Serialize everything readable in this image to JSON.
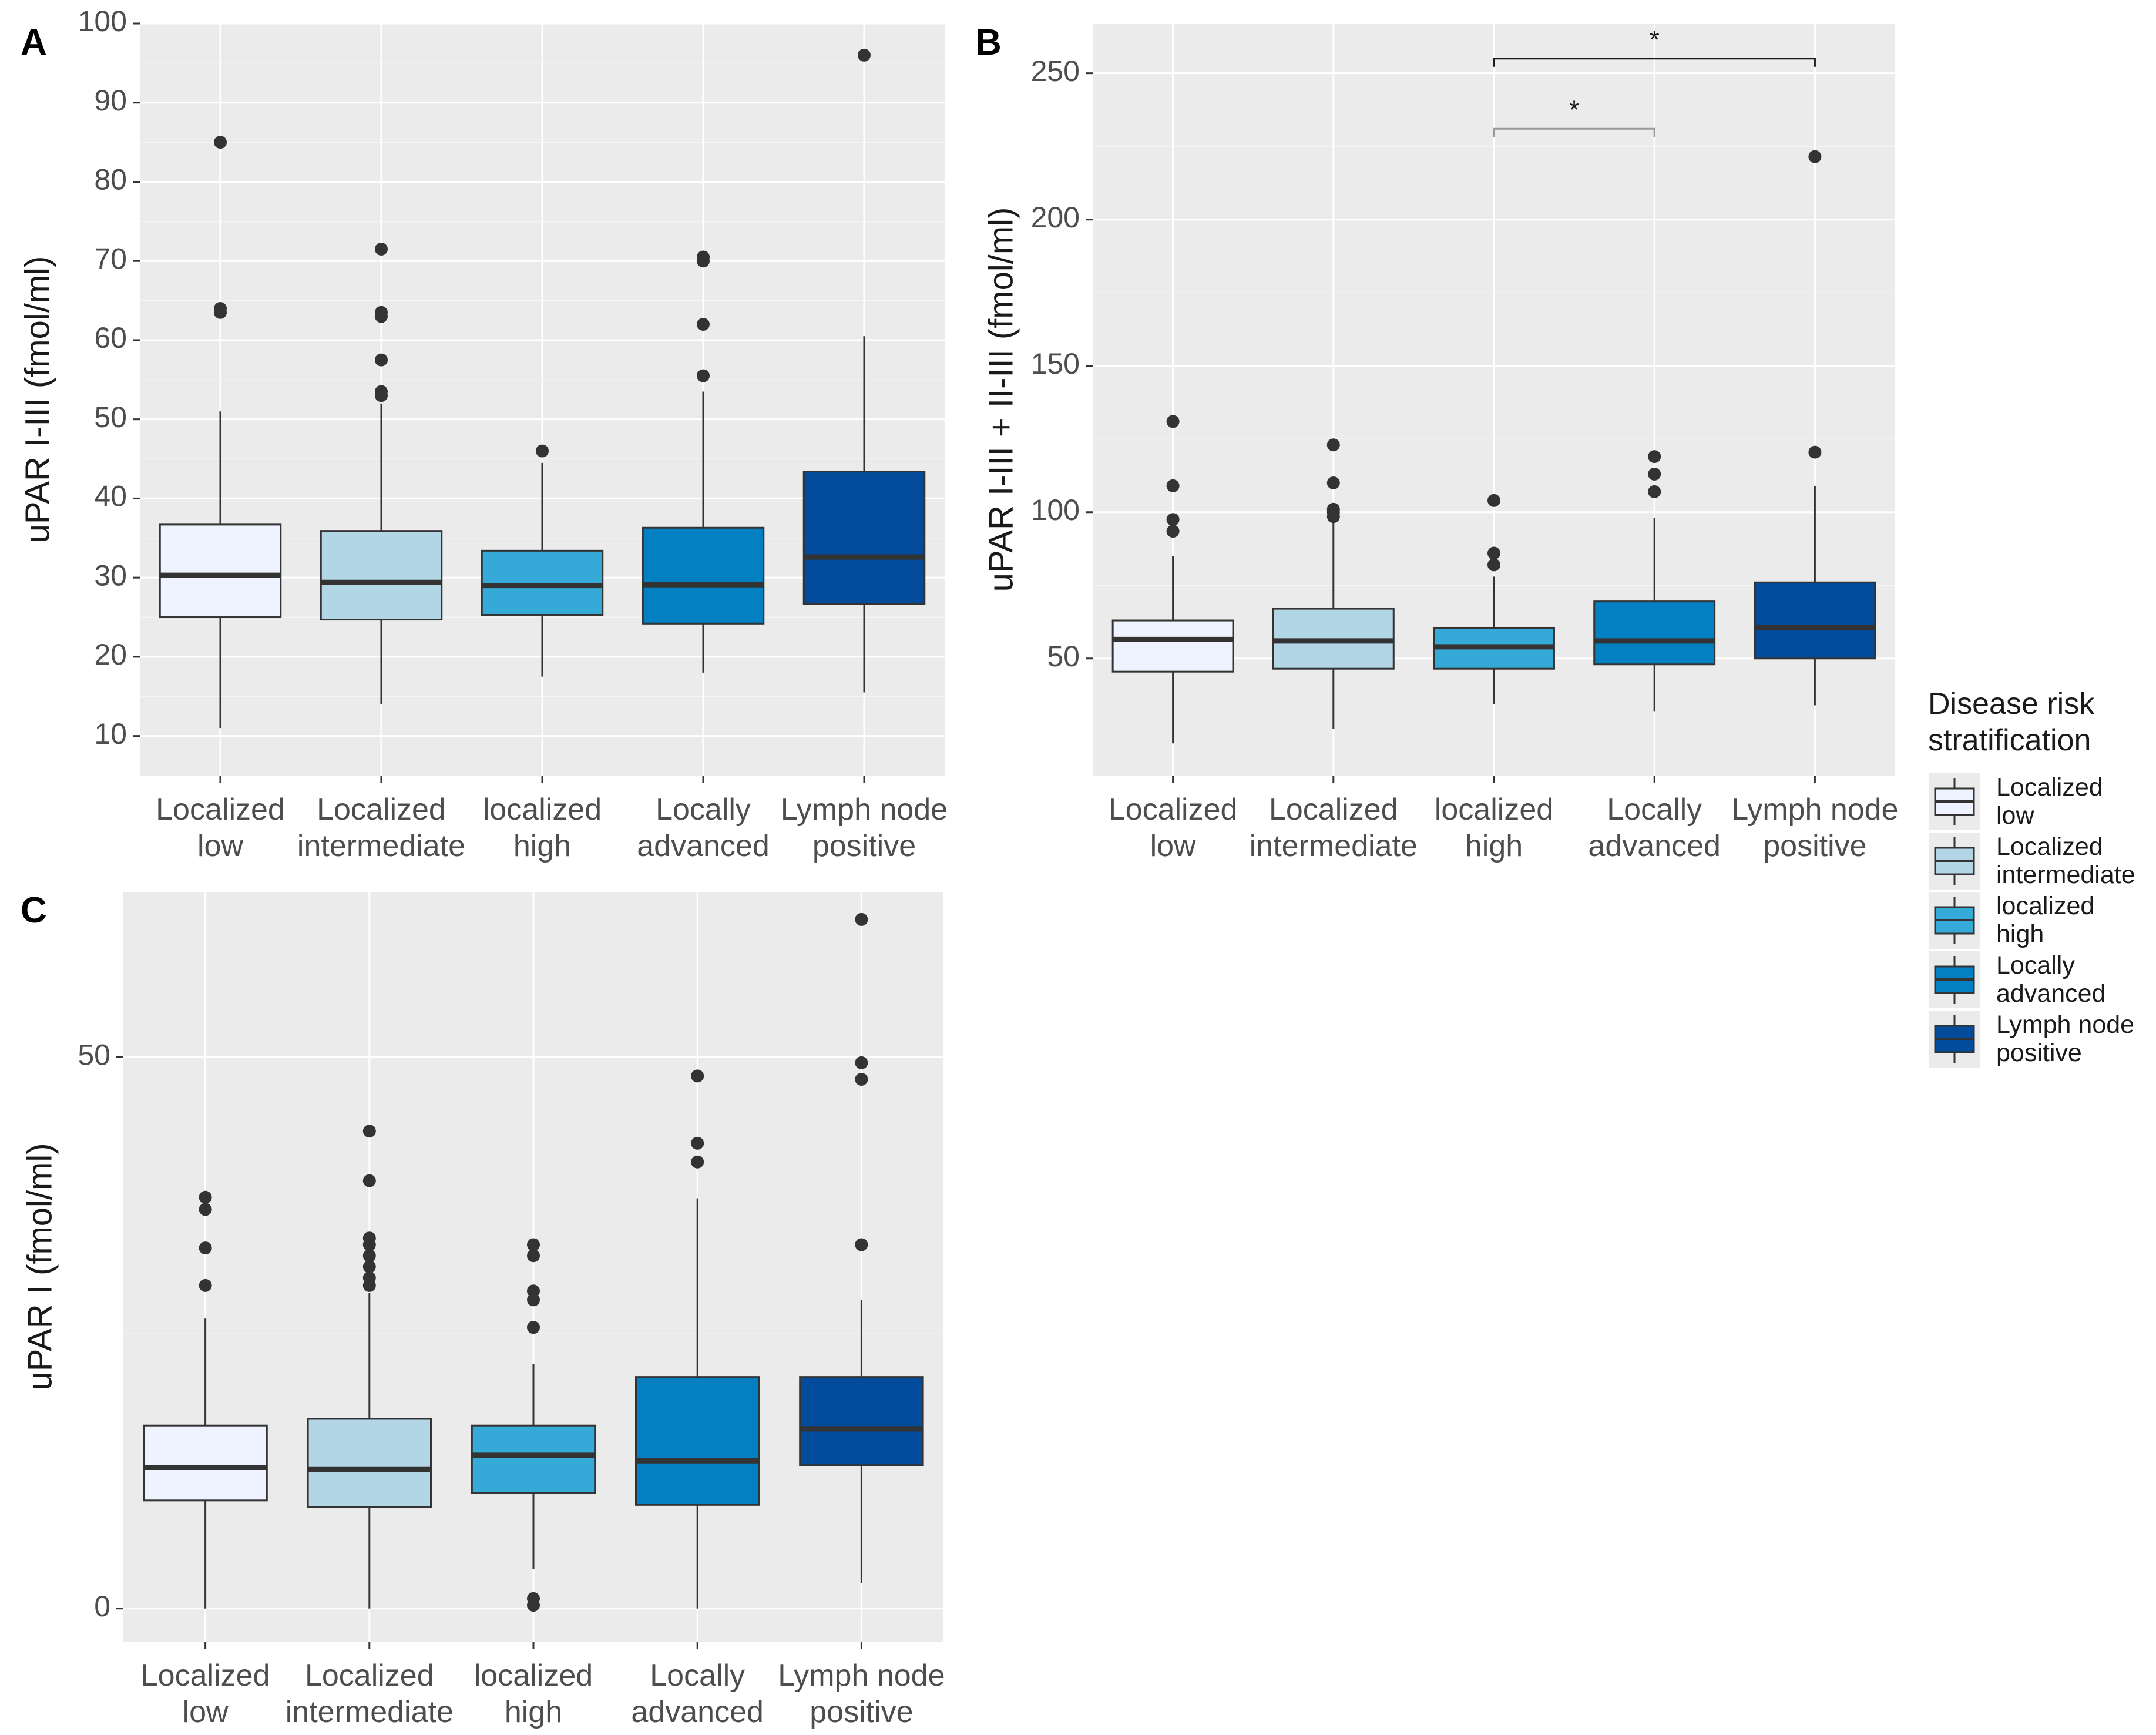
{
  "colors": {
    "panel_bg": "#ebebeb",
    "grid": "#ffffff",
    "box_stroke": "#333333",
    "median": "#333333",
    "point": "#333333",
    "bracket": "#1a1a1a",
    "bracket_short": "#999999"
  },
  "categories": [
    "Localized low",
    "Localized intermediate",
    "localized high",
    "Locally advanced",
    "Lymph node positive"
  ],
  "category_colors": [
    "#eff3ff",
    "#b3d6e6",
    "#35aad8",
    "#0280c2",
    "#034c9c"
  ],
  "legend": {
    "title_lines": [
      "Disease risk",
      "stratification"
    ],
    "items": [
      {
        "lines": [
          "Localized",
          "low"
        ]
      },
      {
        "lines": [
          "Localized",
          "intermediate"
        ]
      },
      {
        "lines": [
          "localized",
          "high"
        ]
      },
      {
        "lines": [
          "Locally",
          "advanced"
        ]
      },
      {
        "lines": [
          "Lymph node",
          "positive"
        ]
      }
    ]
  },
  "chart_data": [
    {
      "panel": "A",
      "type": "boxplot",
      "ylabel": "uPAR I-III (fmol/ml)",
      "ylim": [
        5,
        100
      ],
      "yticks": [
        10,
        20,
        30,
        40,
        50,
        60,
        70,
        80,
        90,
        100
      ],
      "xtick_lines": [
        [
          "Localized",
          "low"
        ],
        [
          "Localized",
          "intermediate"
        ],
        [
          "localized",
          "high"
        ],
        [
          "Locally",
          "advanced"
        ],
        [
          "Lymph node",
          "positive"
        ]
      ],
      "boxes": [
        {
          "category": "Localized low",
          "lower_whisker": 11,
          "q1": 25,
          "median": 30.3,
          "q3": 36.7,
          "upper_whisker": 51,
          "outliers": [
            63.5,
            64,
            85
          ]
        },
        {
          "category": "Localized intermediate",
          "lower_whisker": 14,
          "q1": 24.7,
          "median": 29.4,
          "q3": 35.9,
          "upper_whisker": 52,
          "outliers": [
            53,
            53.5,
            57.5,
            63,
            63.5,
            71.5
          ]
        },
        {
          "category": "localized high",
          "lower_whisker": 17.5,
          "q1": 25.3,
          "median": 29,
          "q3": 33.4,
          "upper_whisker": 44.5,
          "outliers": [
            46
          ]
        },
        {
          "category": "Locally advanced",
          "lower_whisker": 18,
          "q1": 24.2,
          "median": 29.1,
          "q3": 36.3,
          "upper_whisker": 53.5,
          "outliers": [
            55.5,
            62,
            70,
            70.5
          ]
        },
        {
          "category": "Lymph node positive",
          "lower_whisker": 15.5,
          "q1": 26.7,
          "median": 32.6,
          "q3": 43.4,
          "upper_whisker": 60.5,
          "outliers": [
            96
          ]
        }
      ]
    },
    {
      "panel": "B",
      "type": "boxplot",
      "ylabel": "uPAR I-III + II-III (fmol/ml)",
      "ylim": [
        10,
        267
      ],
      "yticks": [
        50,
        100,
        150,
        200,
        250
      ],
      "xtick_lines": [
        [
          "Localized",
          "low"
        ],
        [
          "Localized",
          "intermediate"
        ],
        [
          "localized",
          "high"
        ],
        [
          "Locally",
          "advanced"
        ],
        [
          "Lymph node",
          "positive"
        ]
      ],
      "boxes": [
        {
          "category": "Localized low",
          "lower_whisker": 21,
          "q1": 45.5,
          "median": 56.5,
          "q3": 63,
          "upper_whisker": 85,
          "outliers": [
            93.5,
            97.5,
            109,
            131
          ]
        },
        {
          "category": "Localized intermediate",
          "lower_whisker": 26,
          "q1": 46.5,
          "median": 56,
          "q3": 67,
          "upper_whisker": 97,
          "outliers": [
            98.5,
            100,
            101,
            110,
            123
          ]
        },
        {
          "category": "localized high",
          "lower_whisker": 34.5,
          "q1": 46.5,
          "median": 54,
          "q3": 60.5,
          "upper_whisker": 78,
          "outliers": [
            82,
            86,
            104
          ]
        },
        {
          "category": "Locally advanced",
          "lower_whisker": 32,
          "q1": 48,
          "median": 56,
          "q3": 69.5,
          "upper_whisker": 98,
          "outliers": [
            107,
            113,
            119
          ]
        },
        {
          "category": "Lymph node positive",
          "lower_whisker": 34,
          "q1": 50,
          "median": 60.5,
          "q3": 76,
          "upper_whisker": 109,
          "outliers": [
            120.5,
            221.5
          ]
        }
      ],
      "significance": [
        {
          "from": "localized high",
          "to": "Locally advanced",
          "label": "*",
          "y": 231
        },
        {
          "from": "localized high",
          "to": "Lymph node positive",
          "label": "*",
          "y": 255
        }
      ]
    },
    {
      "panel": "C",
      "type": "boxplot",
      "ylabel": "uPAR I (fmol/ml)",
      "ylim": [
        -3,
        65
      ],
      "yticks": [
        0,
        50
      ],
      "xtick_lines": [
        [
          "Localized",
          "low"
        ],
        [
          "Localized",
          "intermediate"
        ],
        [
          "localized",
          "high"
        ],
        [
          "Locally",
          "advanced"
        ],
        [
          "Lymph node",
          "positive"
        ]
      ],
      "boxes": [
        {
          "category": "Localized low",
          "lower_whisker": 0,
          "q1": 9.8,
          "median": 12.8,
          "q3": 16.6,
          "upper_whisker": 26.3,
          "outliers": [
            29.3,
            32.7,
            36.2,
            37.3
          ]
        },
        {
          "category": "Localized intermediate",
          "lower_whisker": 0,
          "q1": 9.2,
          "median": 12.6,
          "q3": 17.2,
          "upper_whisker": 28.6,
          "outliers": [
            29.3,
            30,
            31,
            32,
            33,
            33.6,
            38.8,
            43.3
          ]
        },
        {
          "category": "localized high",
          "lower_whisker": 3.6,
          "q1": 10.5,
          "median": 13.9,
          "q3": 16.6,
          "upper_whisker": 22.2,
          "outliers": [
            0.3,
            0.9,
            25.5,
            28,
            28.8,
            32,
            33
          ]
        },
        {
          "category": "Locally advanced",
          "lower_whisker": 0,
          "q1": 9.4,
          "median": 13.4,
          "q3": 21,
          "upper_whisker": 37.2,
          "outliers": [
            40.5,
            42.2,
            48.3
          ]
        },
        {
          "category": "Lymph node positive",
          "lower_whisker": 2.3,
          "q1": 13,
          "median": 16.3,
          "q3": 21,
          "upper_whisker": 28,
          "outliers": [
            33,
            48,
            49.5,
            62.5
          ]
        }
      ]
    }
  ]
}
